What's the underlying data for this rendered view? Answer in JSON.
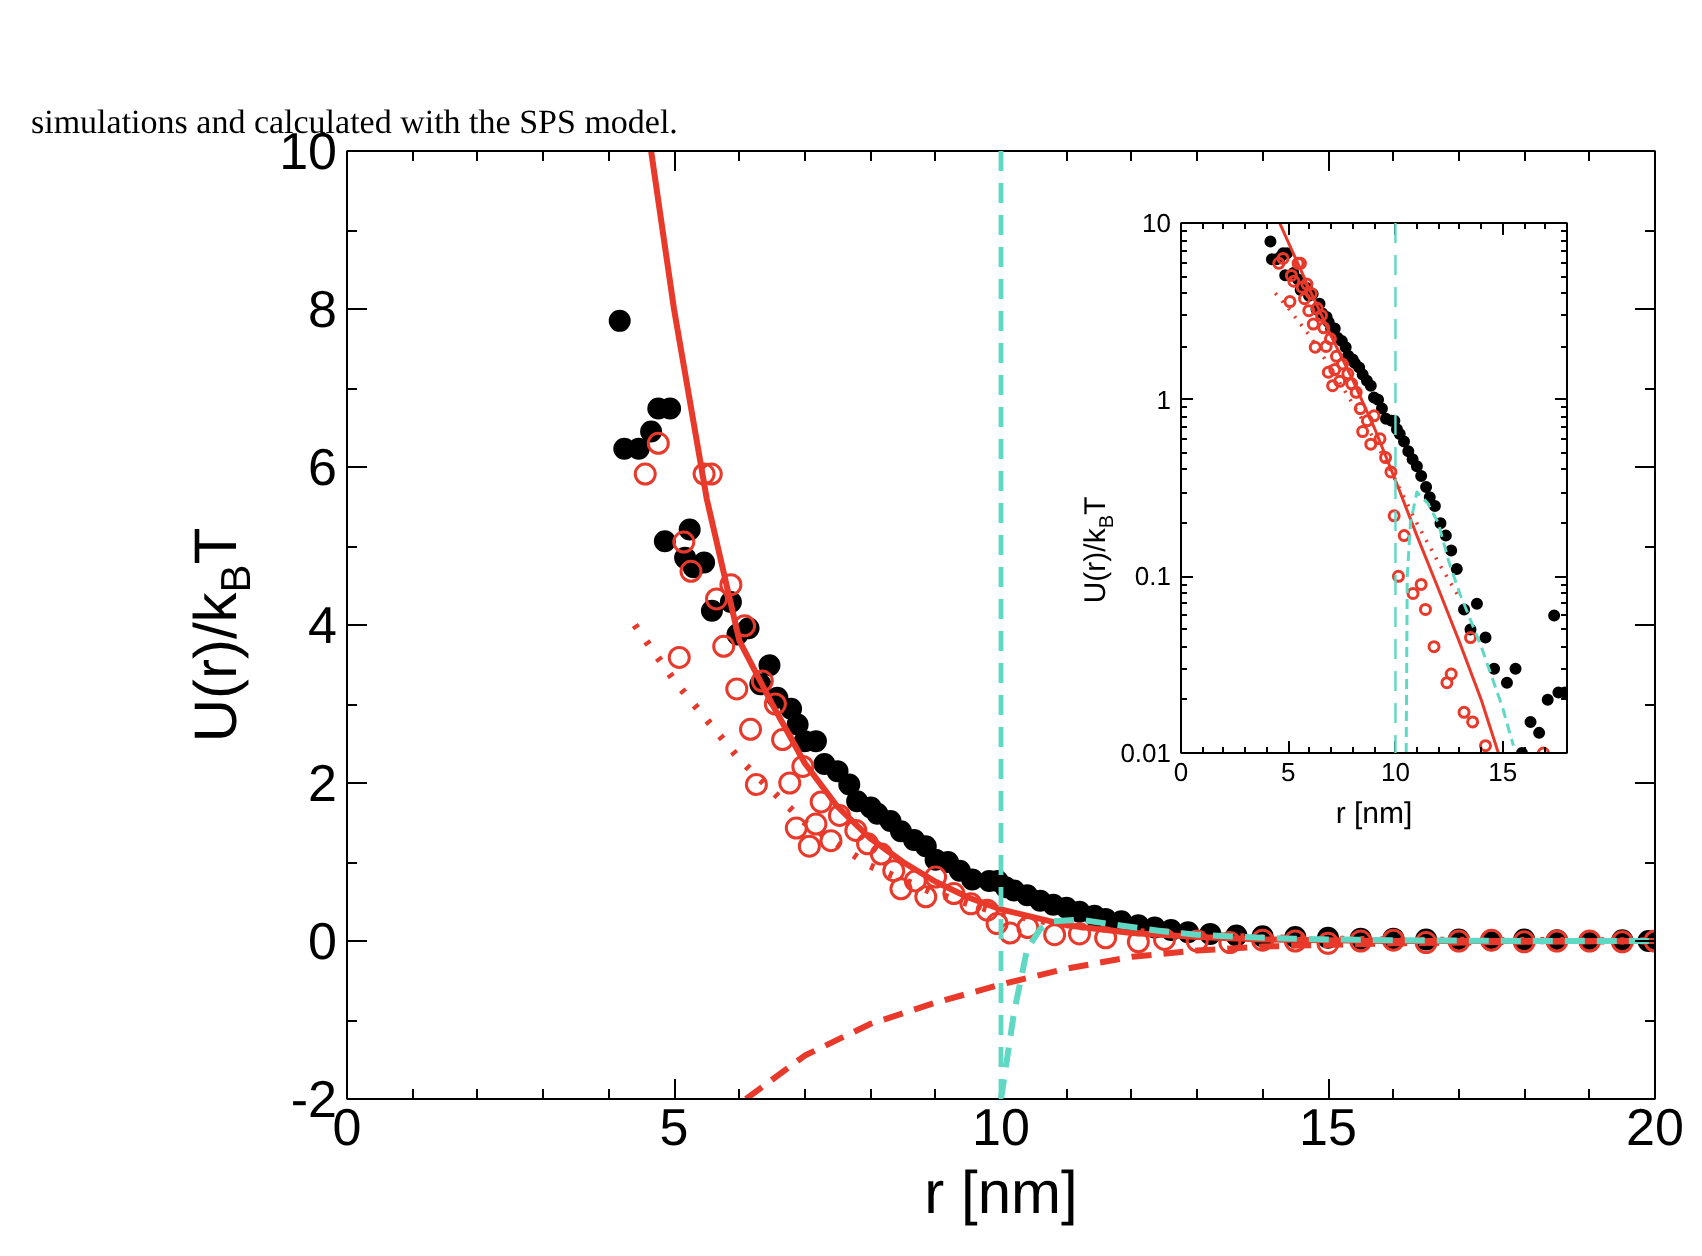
{
  "chart_data": [
    {
      "type": "scatter",
      "annotations": [
        "simulations and calculated with the SPS model."
      ],
      "xlabel": "r [nm]",
      "ylabel": "U(r)/k$_{B}$T",
      "xlim": [
        0,
        20
      ],
      "ylim": [
        -2,
        10
      ],
      "xticks": [
        0,
        5,
        10,
        15,
        20
      ],
      "yticks": [
        -2,
        0,
        2,
        4,
        6,
        8,
        10
      ],
      "ref_lines": [
        {
          "axis": "x",
          "value": 10,
          "color": "#5fd8c4",
          "line_style": "dashed"
        }
      ],
      "series": [
        {
          "type": "line",
          "color": "#e8392a",
          "line_style": "solid",
          "x": [
            4.65,
            5,
            5.5,
            6,
            6.5,
            7,
            7.5,
            8,
            8.5,
            9,
            9.5,
            10,
            11,
            12,
            13,
            14,
            15,
            16,
            18,
            20
          ],
          "values": [
            10,
            8.0,
            5.6,
            3.8,
            3.0,
            2.25,
            1.7,
            1.3,
            1.0,
            0.75,
            0.55,
            0.4,
            0.2,
            0.1,
            0.05,
            0.02,
            0.01,
            0.0,
            0.0,
            0.0
          ]
        },
        {
          "type": "line",
          "color": "#e8392a",
          "line_style": "dotted",
          "x": [
            4.4,
            5,
            6,
            7,
            8,
            9,
            10,
            11,
            12,
            13,
            14,
            16,
            20
          ],
          "values": [
            4.0,
            3.3,
            2.3,
            1.5,
            0.95,
            0.6,
            0.35,
            0.2,
            0.12,
            0.08,
            0.04,
            0.01,
            0.0
          ]
        },
        {
          "type": "line",
          "color": "#e8392a",
          "line_style": "dashed",
          "x": [
            6.1,
            7,
            8,
            9,
            10,
            11,
            12,
            13,
            14,
            16,
            18,
            20
          ],
          "values": [
            -2,
            -1.45,
            -1.05,
            -0.78,
            -0.55,
            -0.35,
            -0.2,
            -0.12,
            -0.07,
            -0.03,
            -0.01,
            0
          ]
        },
        {
          "type": "line",
          "color": "#5fd8c4",
          "line_style": "dashed",
          "x": [
            10.0,
            10.2,
            10.4,
            10.6,
            10.8,
            11.2,
            11.8,
            12.5,
            13,
            14,
            15,
            16,
            18,
            20
          ],
          "values": [
            -2,
            -0.9,
            -0.1,
            0.15,
            0.25,
            0.27,
            0.2,
            0.12,
            0.08,
            0.04,
            0.02,
            0.01,
            0,
            0
          ]
        },
        {
          "marker": "circle",
          "color": "#000000",
          "x": [
            4.17,
            4.24,
            4.46,
            4.65,
            4.76,
            4.86,
            4.94,
            5.17,
            5.24,
            5.3,
            5.46,
            5.58,
            5.87,
            5.97,
            6.14,
            6.32,
            6.46,
            6.58,
            6.79,
            6.89,
            7.0,
            7.17,
            7.3,
            7.5,
            7.68,
            7.8,
            8.01,
            8.11,
            8.31,
            8.47,
            8.67,
            8.85,
            9.0,
            9.19,
            9.37,
            9.56,
            9.82,
            9.95,
            10.07,
            10.2,
            10.4,
            10.6,
            10.8,
            11.0,
            11.2,
            11.43,
            11.6,
            11.84,
            12.1,
            12.35,
            12.6,
            12.86,
            13.2,
            13.6,
            14.0,
            14.5,
            15.0,
            15.5,
            16.0,
            16.5,
            17.0,
            17.5,
            18.0,
            18.5,
            19.0,
            19.5,
            19.9
          ],
          "values": [
            7.85,
            6.23,
            6.23,
            6.45,
            6.74,
            5.06,
            6.74,
            4.85,
            5.21,
            4.73,
            4.79,
            4.18,
            4.29,
            3.88,
            3.96,
            3.25,
            3.49,
            3.08,
            2.94,
            2.74,
            2.53,
            2.53,
            2.24,
            2.15,
            1.98,
            1.77,
            1.69,
            1.61,
            1.52,
            1.39,
            1.28,
            1.2,
            1.03,
            1.0,
            0.89,
            0.78,
            0.76,
            0.76,
            0.68,
            0.64,
            0.58,
            0.51,
            0.46,
            0.42,
            0.37,
            0.32,
            0.28,
            0.25,
            0.2,
            0.17,
            0.14,
            0.11,
            0.09,
            0.07,
            0.06,
            0.05,
            0.04,
            0.03,
            0.03,
            0.02,
            0.02,
            0.01,
            0.02,
            0.01,
            0.0,
            0.01,
            0.0
          ]
        },
        {
          "marker": "circle_open",
          "color": "#e8392a",
          "x": [
            4.56,
            4.76,
            5.08,
            5.15,
            5.26,
            5.46,
            5.57,
            5.65,
            5.76,
            5.87,
            5.96,
            6.08,
            6.17,
            6.26,
            6.35,
            6.55,
            6.66,
            6.77,
            6.87,
            6.97,
            7.07,
            7.17,
            7.25,
            7.4,
            7.53,
            7.78,
            7.96,
            8.17,
            8.36,
            8.47,
            8.69,
            8.85,
            9.0,
            9.28,
            9.54,
            9.79,
            9.94,
            10.14,
            10.41,
            10.82,
            11.2,
            11.6,
            12.1,
            12.5,
            13.0,
            13.5,
            14.0,
            14.5,
            15.0,
            15.5,
            16.0,
            16.5,
            17.0,
            17.5,
            18.0,
            18.5,
            19.0,
            19.5,
            20.0
          ],
          "values": [
            5.91,
            6.3,
            3.59,
            5.05,
            4.68,
            5.91,
            5.91,
            4.33,
            3.73,
            4.51,
            3.19,
            3.99,
            2.68,
            1.98,
            3.29,
            3.0,
            2.55,
            2.0,
            1.43,
            2.21,
            1.2,
            1.48,
            1.76,
            1.27,
            1.59,
            1.4,
            1.23,
            1.1,
            0.89,
            0.66,
            0.76,
            0.56,
            0.81,
            0.6,
            0.47,
            0.39,
            0.22,
            0.1,
            0.17,
            0.08,
            0.09,
            0.04,
            -0.01,
            0.02,
            0.0,
            -0.02,
            0.01,
            0.0,
            -0.03,
            0.0,
            0.01,
            -0.02,
            0.0,
            0.01,
            -0.01,
            0.0,
            0.0,
            -0.01,
            0.0
          ]
        }
      ]
    },
    {
      "type": "scatter",
      "xlabel": "r [nm]",
      "ylabel": "U(r)/k$_{B}$T",
      "log": true,
      "xlim": [
        0,
        18
      ],
      "ylim": [
        0.01,
        10
      ],
      "xticks": [
        0,
        5,
        10,
        15
      ],
      "yticks": [
        0.01,
        0.1,
        1,
        10
      ],
      "ref_lines": [
        {
          "axis": "x",
          "value": 10,
          "color": "#5fd8c4",
          "line_style": "dashed"
        }
      ],
      "series": [
        {
          "type": "line",
          "color": "#e8392a",
          "line_style": "solid",
          "x": [
            4.6,
            5,
            6,
            7,
            8,
            9,
            10,
            11,
            12,
            13,
            14,
            14.8
          ],
          "values": [
            10,
            7.8,
            4.2,
            2.3,
            1.3,
            0.7,
            0.35,
            0.17,
            0.085,
            0.042,
            0.02,
            0.01
          ]
        },
        {
          "type": "line",
          "color": "#e8392a",
          "line_style": "dotted",
          "x": [
            4.4,
            5,
            6,
            7,
            8,
            9,
            10,
            11,
            12,
            13
          ],
          "values": [
            4.0,
            3.3,
            2.3,
            1.5,
            0.95,
            0.6,
            0.35,
            0.2,
            0.12,
            0.075
          ]
        },
        {
          "type": "line",
          "color": "#5fd8c4",
          "line_style": "dashed",
          "x": [
            10.5,
            10.55,
            10.7,
            11,
            11.5,
            12,
            12.5,
            13,
            14,
            15,
            15.5
          ],
          "values": [
            0.01,
            0.1,
            0.2,
            0.3,
            0.26,
            0.2,
            0.12,
            0.08,
            0.04,
            0.018,
            0.011
          ]
        },
        {
          "marker": "circle",
          "color": "#000000",
          "x": [
            4.17,
            4.24,
            4.46,
            4.65,
            4.76,
            4.86,
            4.94,
            5.24,
            5.46,
            5.58,
            5.87,
            5.97,
            6.14,
            6.32,
            6.46,
            6.58,
            6.79,
            6.89,
            7.0,
            7.17,
            7.3,
            7.5,
            7.68,
            7.8,
            8.01,
            8.11,
            8.31,
            8.47,
            8.67,
            8.85,
            9.0,
            9.19,
            9.37,
            9.56,
            9.82,
            9.95,
            10.07,
            10.2,
            10.4,
            10.6,
            10.8,
            11.0,
            11.2,
            11.43,
            11.6,
            11.84,
            12.1,
            12.35,
            12.6,
            12.86,
            13.2,
            13.5,
            13.8,
            14.2,
            14.6,
            15.2,
            15.6,
            15.9,
            16.3,
            16.7,
            17.1,
            17.4,
            17.6,
            17.9
          ],
          "values": [
            7.85,
            6.23,
            6.23,
            6.45,
            6.74,
            5.06,
            6.74,
            5.21,
            4.79,
            4.18,
            4.29,
            3.88,
            3.96,
            3.25,
            3.49,
            3.08,
            2.94,
            2.74,
            2.53,
            2.53,
            2.24,
            2.15,
            1.98,
            1.77,
            1.69,
            1.61,
            1.52,
            1.39,
            1.28,
            1.2,
            1.03,
            1.0,
            0.89,
            0.78,
            0.76,
            0.76,
            0.68,
            0.64,
            0.58,
            0.51,
            0.46,
            0.42,
            0.37,
            0.32,
            0.28,
            0.25,
            0.2,
            0.17,
            0.14,
            0.11,
            0.065,
            0.05,
            0.07,
            0.045,
            0.03,
            0.025,
            0.03,
            0.01,
            0.015,
            0.013,
            0.02,
            0.06,
            0.022,
            0.022
          ]
        },
        {
          "marker": "circle_open",
          "color": "#e8392a",
          "x": [
            4.56,
            4.76,
            5.08,
            5.15,
            5.26,
            5.46,
            5.57,
            5.65,
            5.76,
            5.87,
            5.96,
            6.08,
            6.17,
            6.26,
            6.35,
            6.55,
            6.66,
            6.77,
            6.87,
            6.97,
            7.07,
            7.17,
            7.25,
            7.4,
            7.53,
            7.78,
            7.96,
            8.17,
            8.36,
            8.47,
            8.69,
            8.85,
            9.0,
            9.28,
            9.54,
            9.79,
            9.94,
            10.14,
            10.41,
            10.82,
            11.2,
            11.4,
            11.8,
            12.4,
            12.6,
            13.2,
            13.5,
            13.6,
            14.2,
            16.9
          ],
          "values": [
            5.91,
            6.3,
            3.59,
            5.05,
            4.68,
            5.91,
            5.91,
            4.33,
            3.73,
            4.51,
            3.19,
            3.99,
            2.68,
            1.98,
            3.29,
            3.0,
            2.55,
            2.0,
            1.43,
            2.21,
            1.2,
            1.48,
            1.76,
            1.27,
            1.59,
            1.4,
            1.23,
            1.1,
            0.89,
            0.66,
            0.76,
            0.56,
            0.81,
            0.6,
            0.47,
            0.39,
            0.22,
            0.1,
            0.17,
            0.08,
            0.09,
            0.065,
            0.04,
            0.025,
            0.028,
            0.017,
            0.045,
            0.015,
            0.011,
            0.01
          ]
        }
      ]
    }
  ]
}
